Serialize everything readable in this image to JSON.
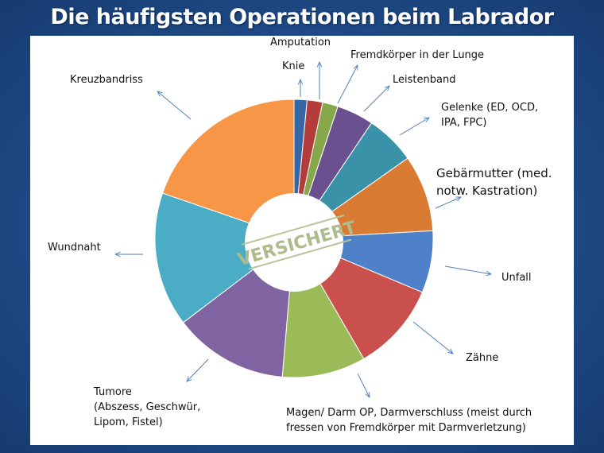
{
  "title": "Die häufigsten Operationen beim Labrador",
  "chart_data": {
    "type": "pie",
    "subtype": "donut",
    "title": "Die häufigsten Operationen beim Labrador",
    "center_label": "VERSICHERT",
    "start": "top",
    "direction": "clockwise",
    "units": "percent (estimated from slice angles)",
    "slices": [
      {
        "label": "Knie",
        "lines": [
          "Knie"
        ],
        "value": 1.5,
        "color": "#3566a8"
      },
      {
        "label": "Amputation",
        "lines": [
          "Amputation"
        ],
        "value": 1.8,
        "color": "#b43c3a"
      },
      {
        "label": "Fremdkörper in der Lunge",
        "lines": [
          "Fremdkörper in der Lunge"
        ],
        "value": 1.8,
        "color": "#86a84a"
      },
      {
        "label": "Leistenband",
        "lines": [
          "Leistenband"
        ],
        "value": 4.3,
        "color": "#6b5090"
      },
      {
        "label": "Gelenke (ED, OCD, IPA, FPC)",
        "lines": [
          "Gelenke (ED, OCD,",
          "IPA, FPC)"
        ],
        "value": 5.8,
        "color": "#3a92a8"
      },
      {
        "label": "Gebärmutter (med. notw. Kastration)",
        "lines": [
          "Gebärmutter (med.",
          "notw.  Kastration)"
        ],
        "value": 8.9,
        "color": "#d97b33"
      },
      {
        "label": "Unfall",
        "lines": [
          "Unfall"
        ],
        "value": 7.2,
        "color": "#4f81c8"
      },
      {
        "label": "Zähne",
        "lines": [
          "Zähne"
        ],
        "value": 10.3,
        "color": "#c9504c"
      },
      {
        "label": "Magen/ Darm OP, Darmverschluss (meist durch fressen von Fremdkörper mit Darmverletzung)",
        "lines": [
          "Magen/ Darm OP, Darmverschluss (meist durch",
          "fressen von Fremdkörper mit Darmverletzung)"
        ],
        "value": 9.7,
        "color": "#9bbb59"
      },
      {
        "label": "Tumore (Abszess, Geschwür, Lipom, Fistel)",
        "lines": [
          "Tumore",
          "(Abszess, Geschwür,",
          "Lipom, Fistel)"
        ],
        "value": 13.3,
        "color": "#8064a2"
      },
      {
        "label": "Wundnaht",
        "lines": [
          "Wundnaht"
        ],
        "value": 15.6,
        "color": "#4bacc6"
      },
      {
        "label": "Kreuzbandriss",
        "lines": [
          "Kreuzbandriss"
        ],
        "value": 19.7,
        "color": "#f79646"
      }
    ]
  }
}
